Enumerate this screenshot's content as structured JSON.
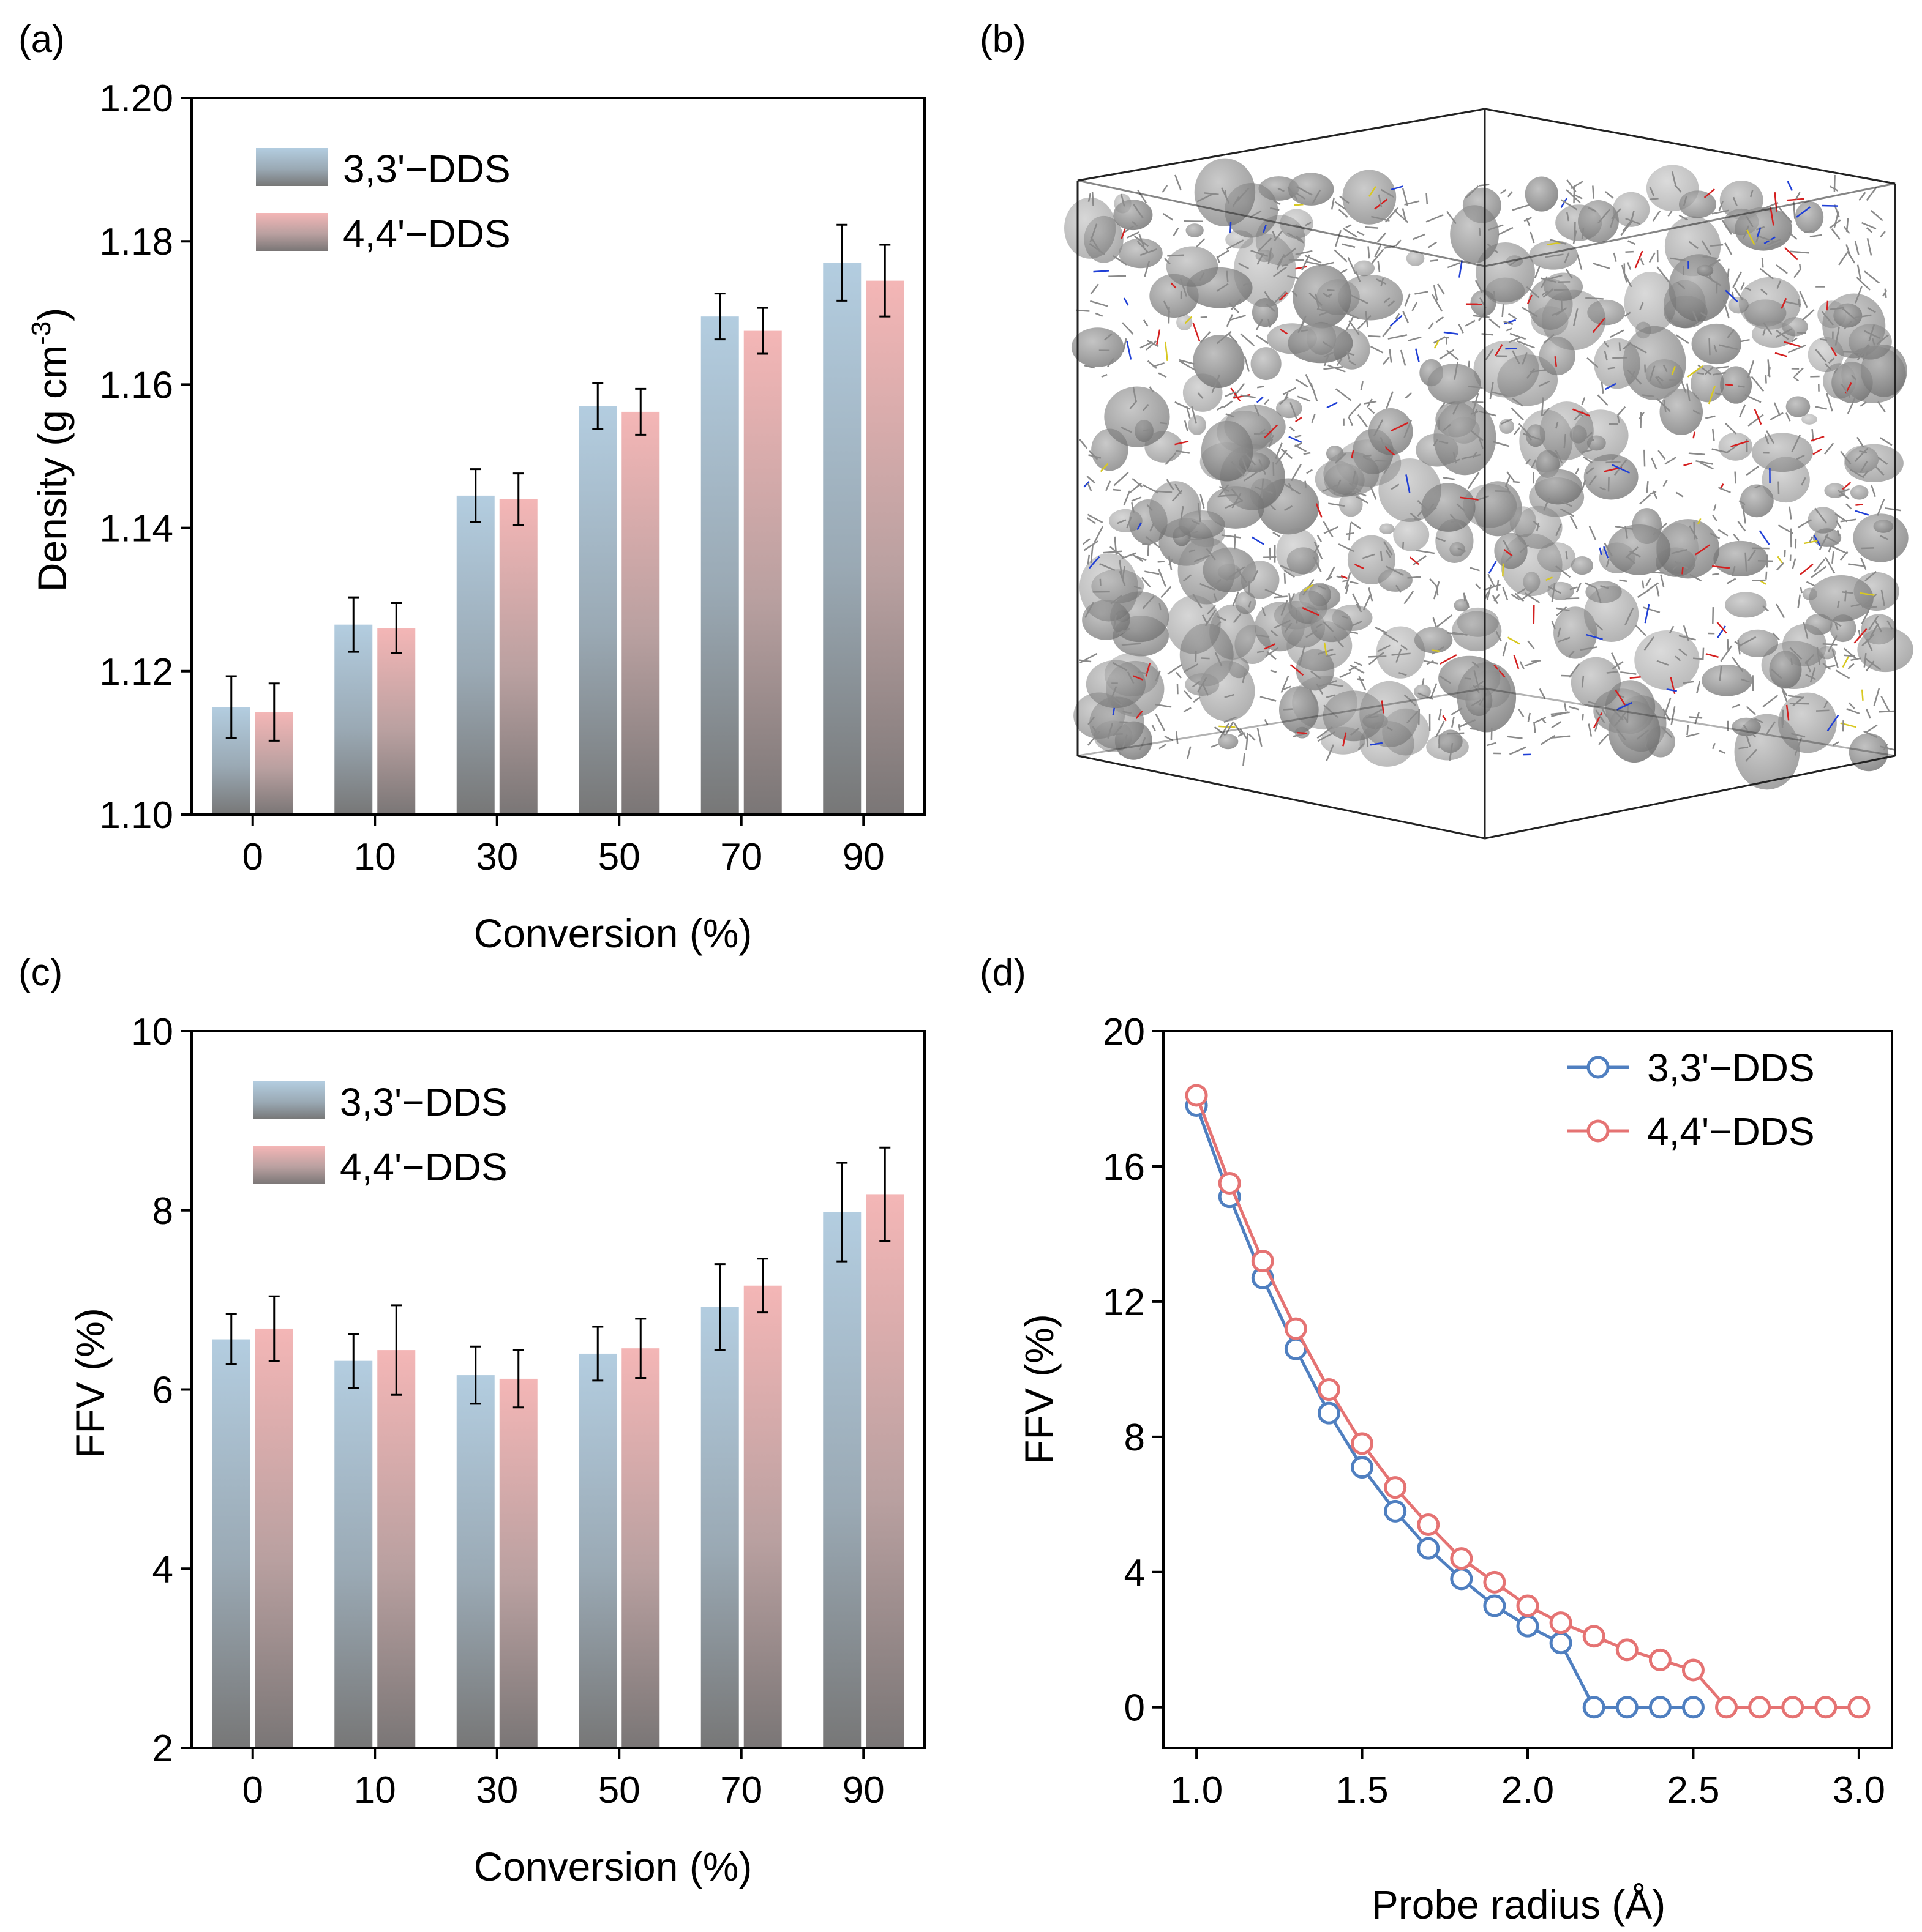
{
  "colors": {
    "series1": "#4f7fc0",
    "series2": "#e57373",
    "bar1_top": "#b3cde0",
    "bar2_top": "#f4b6b6",
    "bar_bottom": "#777777",
    "axis": "#000000"
  },
  "panel_b": {
    "label": "(b)"
  },
  "chart_data": [
    {
      "panel": "(a)",
      "type": "bar",
      "title": "",
      "xlabel": "Conversion (%)",
      "ylabel": "Density (g cm",
      "ylabel_superscript": "-3",
      "ylabel_close": ")",
      "categories": [
        "0",
        "10",
        "30",
        "50",
        "70",
        "90"
      ],
      "ylim": [
        1.1,
        1.2
      ],
      "yticks": [
        "1.10",
        "1.12",
        "1.14",
        "1.16",
        "1.18",
        "1.20"
      ],
      "legend_position": "top-left",
      "series": [
        {
          "name": "3,3'−DDS",
          "values": [
            1.115,
            1.1265,
            1.1445,
            1.157,
            1.1695,
            1.177
          ],
          "errors": [
            0.0043,
            0.0038,
            0.0037,
            0.0032,
            0.0032,
            0.0053
          ]
        },
        {
          "name": "4,4'−DDS",
          "values": [
            1.1143,
            1.126,
            1.144,
            1.1562,
            1.1675,
            1.1745
          ],
          "errors": [
            0.004,
            0.0035,
            0.0036,
            0.0032,
            0.0032,
            0.005
          ]
        }
      ]
    },
    {
      "panel": "(c)",
      "type": "bar",
      "title": "",
      "xlabel": "Conversion (%)",
      "ylabel": "FFV (%)",
      "categories": [
        "0",
        "10",
        "30",
        "50",
        "70",
        "90"
      ],
      "ylim": [
        2,
        10
      ],
      "yticks": [
        "2",
        "4",
        "6",
        "8",
        "10"
      ],
      "legend_position": "top-left",
      "series": [
        {
          "name": "3,3'−DDS",
          "values": [
            6.56,
            6.32,
            6.16,
            6.4,
            6.92,
            7.98
          ],
          "errors": [
            0.28,
            0.3,
            0.32,
            0.3,
            0.48,
            0.55
          ]
        },
        {
          "name": "4,4'−DDS",
          "values": [
            6.68,
            6.44,
            6.12,
            6.46,
            7.16,
            8.18
          ],
          "errors": [
            0.36,
            0.5,
            0.32,
            0.33,
            0.3,
            0.52
          ]
        }
      ]
    },
    {
      "panel": "(d)",
      "type": "line",
      "title": "",
      "xlabel": "Probe radius (Å)",
      "ylabel": "FFV (%)",
      "xlim": [
        0.9,
        3.1
      ],
      "ylim": [
        -1.2,
        20
      ],
      "xticks": [
        "1.0",
        "1.5",
        "2.0",
        "2.5",
        "3.0"
      ],
      "yticks": [
        "0",
        "4",
        "8",
        "12",
        "16",
        "20"
      ],
      "legend_position": "top-right",
      "x": [
        1.0,
        1.1,
        1.2,
        1.3,
        1.4,
        1.5,
        1.6,
        1.7,
        1.8,
        1.9,
        2.0,
        2.1,
        2.2,
        2.3,
        2.4,
        2.5,
        2.6,
        2.7,
        2.8,
        2.9,
        3.0
      ],
      "series": [
        {
          "name": "3,3'−DDS",
          "x": [
            1.0,
            1.1,
            1.2,
            1.3,
            1.4,
            1.5,
            1.6,
            1.7,
            1.8,
            1.9,
            2.0,
            2.1,
            2.2,
            2.3,
            2.4,
            2.5
          ],
          "values": [
            17.8,
            15.1,
            12.7,
            10.6,
            8.7,
            7.1,
            5.8,
            4.7,
            3.8,
            3.0,
            2.4,
            1.9,
            0,
            0,
            0,
            0
          ]
        },
        {
          "name": "4,4'−DDS",
          "x": [
            1.0,
            1.1,
            1.2,
            1.3,
            1.4,
            1.5,
            1.6,
            1.7,
            1.8,
            1.9,
            2.0,
            2.1,
            2.2,
            2.3,
            2.4,
            2.5,
            2.6,
            2.7,
            2.8,
            2.9,
            3.0
          ],
          "values": [
            18.1,
            15.5,
            13.2,
            11.2,
            9.4,
            7.8,
            6.5,
            5.4,
            4.4,
            3.7,
            3.0,
            2.5,
            2.1,
            1.7,
            1.4,
            1.1,
            0,
            0,
            0,
            0,
            0
          ]
        }
      ]
    }
  ]
}
